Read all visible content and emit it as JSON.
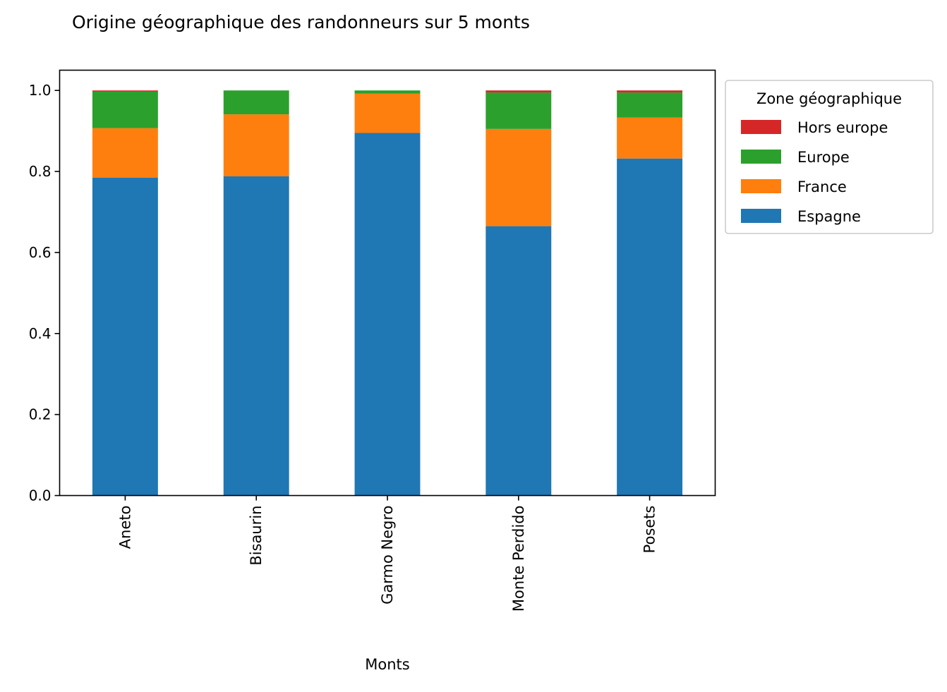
{
  "chart_data": {
    "type": "bar",
    "stacked": true,
    "title": "Origine géographique des randonneurs sur 5 monts",
    "xlabel": "Monts",
    "ylabel": "",
    "ylim": [
      0,
      1.05
    ],
    "yticks": [
      "0.0",
      "0.2",
      "0.4",
      "0.6",
      "0.8",
      "1.0"
    ],
    "categories": [
      "Aneto",
      "Bisaurin",
      "Garmo Negro",
      "Monte Perdido",
      "Posets"
    ],
    "series": [
      {
        "name": "Espagne",
        "color": "#1f77b4",
        "values": [
          0.785,
          0.788,
          0.895,
          0.665,
          0.832
        ]
      },
      {
        "name": "France",
        "color": "#ff7f0e",
        "values": [
          0.122,
          0.153,
          0.097,
          0.24,
          0.101
        ]
      },
      {
        "name": "Europe",
        "color": "#2ca02c",
        "values": [
          0.09,
          0.059,
          0.008,
          0.09,
          0.062
        ]
      },
      {
        "name": "Hors europe",
        "color": "#d62728",
        "values": [
          0.003,
          0.0,
          0.0,
          0.005,
          0.005
        ]
      }
    ],
    "legend": {
      "title": "Zone géographique",
      "placement": "outside-right",
      "order": [
        "Hors europe",
        "Europe",
        "France",
        "Espagne"
      ]
    },
    "grid": false
  }
}
